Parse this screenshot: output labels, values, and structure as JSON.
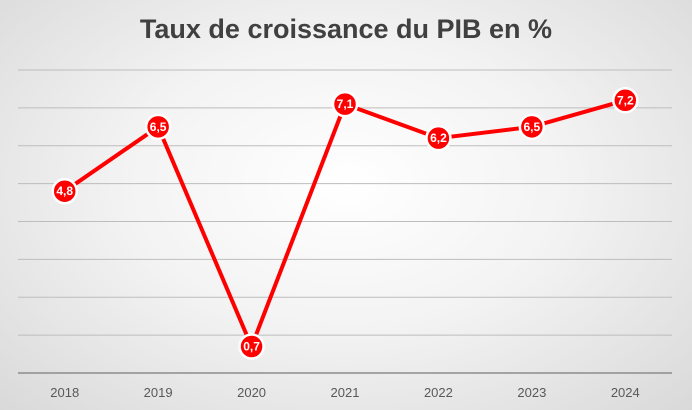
{
  "chart_data": {
    "type": "line",
    "title": "Taux de croissance du PIB en %",
    "categories": [
      "2018",
      "2019",
      "2020",
      "2021",
      "2022",
      "2023",
      "2024"
    ],
    "values": [
      4.8,
      6.5,
      0.7,
      7.1,
      6.2,
      6.5,
      7.2
    ],
    "data_labels": [
      "4,8",
      "6,5",
      "0,7",
      "7,1",
      "6,2",
      "6,5",
      "7,2"
    ],
    "ylim": [
      0,
      8
    ],
    "grid": true,
    "legend": "none",
    "colors": {
      "series": "#ff0000"
    }
  }
}
